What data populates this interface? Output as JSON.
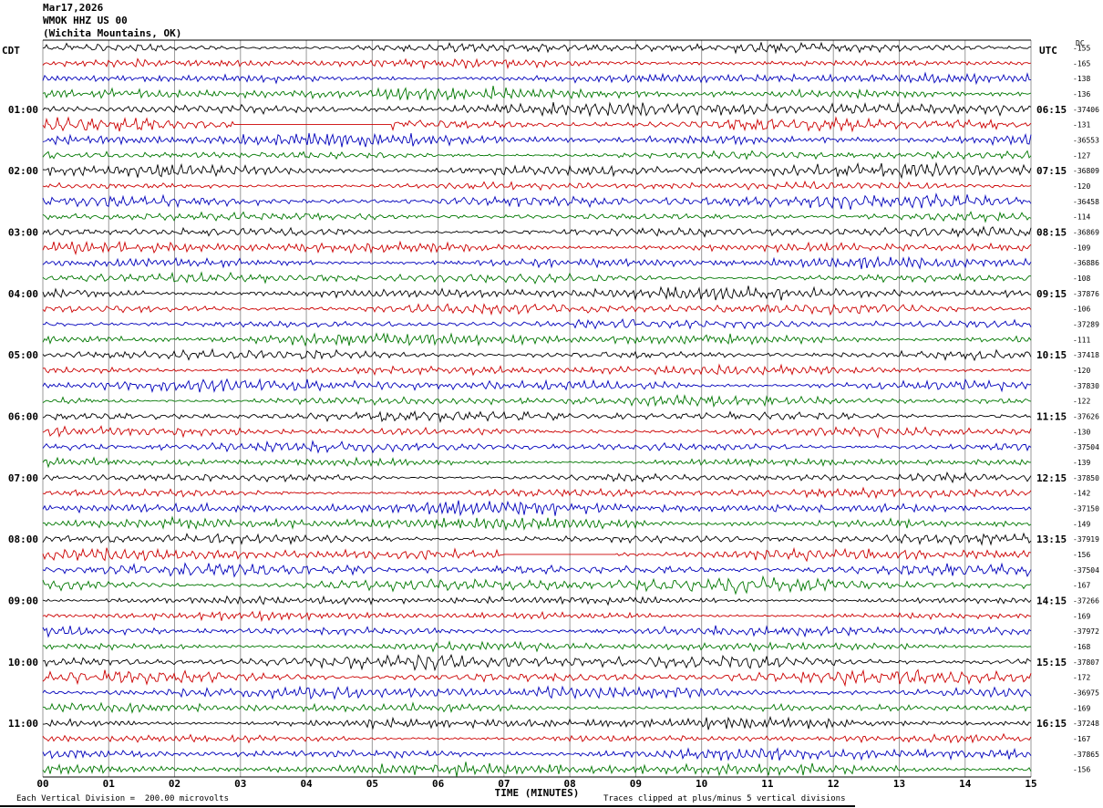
{
  "header": {
    "date_line": "Mar17,2026",
    "station_line": "WMOK HHZ US 00",
    "location_line": "(Wichita Mountains, OK)"
  },
  "axes": {
    "left_tz": "CDT",
    "right_tz": "UTC",
    "dc_label": "DC",
    "x_title": "TIME (MINUTES)"
  },
  "footer": {
    "scale_note": "Each Vertical Division =  200.00 microvolts",
    "clip_note": "Traces clipped at plus/minus 5 vertical divisions"
  },
  "chart_data": {
    "type": "line",
    "title": "WMOK HHZ US 00 helicorder record, Mar17,2026 (Wichita Mountains, OK)",
    "rows": 48,
    "minutes_per_row": 15,
    "x_range": [
      0,
      15
    ],
    "x_ticks": [
      "00",
      "01",
      "02",
      "03",
      "04",
      "05",
      "06",
      "07",
      "08",
      "09",
      "10",
      "11",
      "12",
      "13",
      "14",
      "15"
    ],
    "trace_colors": [
      "#000000",
      "#cc0000",
      "#0000bb",
      "#007700"
    ],
    "row_color_cycle": [
      "black",
      "red",
      "blue",
      "green"
    ],
    "left_times": [
      {
        "row": 4,
        "label": "01:00"
      },
      {
        "row": 8,
        "label": "02:00"
      },
      {
        "row": 12,
        "label": "03:00"
      },
      {
        "row": 16,
        "label": "04:00"
      },
      {
        "row": 20,
        "label": "05:00"
      },
      {
        "row": 24,
        "label": "06:00"
      },
      {
        "row": 28,
        "label": "07:00"
      },
      {
        "row": 32,
        "label": "08:00"
      },
      {
        "row": 36,
        "label": "09:00"
      },
      {
        "row": 40,
        "label": "10:00"
      },
      {
        "row": 44,
        "label": "11:00"
      }
    ],
    "right_times": [
      {
        "row": 4,
        "label": "06:15"
      },
      {
        "row": 8,
        "label": "07:15"
      },
      {
        "row": 12,
        "label": "08:15"
      },
      {
        "row": 16,
        "label": "09:15"
      },
      {
        "row": 20,
        "label": "10:15"
      },
      {
        "row": 24,
        "label": "11:15"
      },
      {
        "row": 28,
        "label": "12:15"
      },
      {
        "row": 32,
        "label": "13:15"
      },
      {
        "row": 36,
        "label": "14:15"
      },
      {
        "row": 40,
        "label": "15:15"
      },
      {
        "row": 44,
        "label": "16:15"
      }
    ],
    "dc_values": [
      -155,
      -165,
      -138,
      -136,
      -37406,
      -131,
      -36553,
      -127,
      -36809,
      -120,
      -36458,
      -114,
      -36869,
      -109,
      -36886,
      -108,
      -37876,
      -106,
      -37289,
      -111,
      -37418,
      -120,
      -37830,
      -122,
      -37626,
      -130,
      -37504,
      -139,
      -37850,
      -142,
      -37150,
      -149,
      -37919,
      -156,
      -37504,
      -167,
      -37266,
      -169,
      -37972,
      -168,
      -37807,
      -172,
      -36975,
      -169,
      -37248,
      -167,
      -37865,
      -156
    ],
    "flat_segments": [
      {
        "row": 5,
        "from_min": 2.9,
        "to_min": 5.3
      },
      {
        "row": 33,
        "from_min": 7.0,
        "to_min": 8.7
      }
    ]
  }
}
